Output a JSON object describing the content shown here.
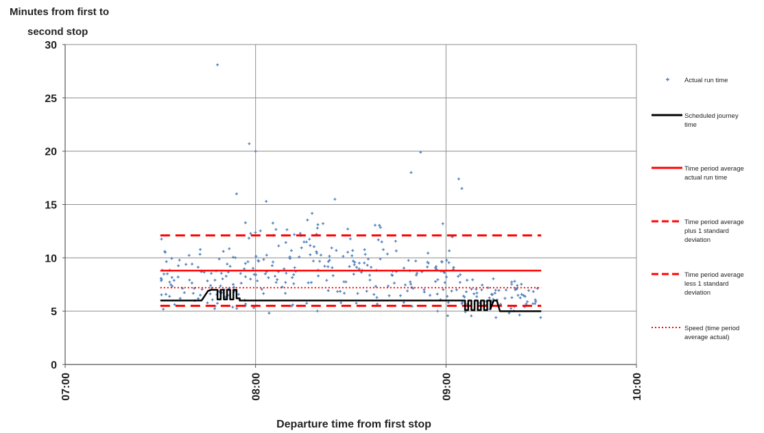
{
  "chart_data": {
    "type": "scatter",
    "ylabel_lines": [
      "Minutes from first to",
      "second stop"
    ],
    "xlabel": "Departure time from first stop",
    "xlim": [
      "07:00",
      "10:00"
    ],
    "ylim": [
      0,
      30
    ],
    "x_ticks": [
      "07:00",
      "08:00",
      "09:00",
      "10:00"
    ],
    "y_ticks": [
      0,
      5,
      10,
      15,
      20,
      25,
      30
    ],
    "grid": true,
    "legend_position": "right",
    "legend": [
      {
        "key": "actual",
        "lines": [
          "Actual run time"
        ],
        "color": "#4f81bd",
        "style": "marker"
      },
      {
        "key": "scheduled",
        "lines": [
          "Scheduled journey",
          "time"
        ],
        "color": "#000000",
        "style": "solid"
      },
      {
        "key": "avg",
        "lines": [
          "Time period average",
          "actual run time"
        ],
        "color": "#ff0000",
        "style": "solid"
      },
      {
        "key": "plus",
        "lines": [
          "Time period average",
          "plus 1 standard",
          "deviation"
        ],
        "color": "#ff0000",
        "style": "dashed"
      },
      {
        "key": "minus",
        "lines": [
          "Time period average",
          "less 1 standard",
          "deviation"
        ],
        "color": "#ff0000",
        "style": "dashed"
      },
      {
        "key": "speed",
        "lines": [
          "Speed (time period",
          "average actual)"
        ],
        "color": "#ff0000",
        "style": "dotted"
      }
    ],
    "reference_lines": {
      "x_range": [
        "07:30",
        "09:30"
      ],
      "avg": 8.8,
      "plus": 12.1,
      "minus": 5.5,
      "speed": 7.2
    },
    "scheduled_series": {
      "name": "Scheduled journey time",
      "x": [
        "07:30",
        "07:43",
        "07:45",
        "07:46",
        "07:47",
        "07:48",
        "07:48",
        "07:49",
        "07:49",
        "07:50",
        "07:50",
        "07:51",
        "07:51",
        "07:52",
        "07:52",
        "07:53",
        "07:53",
        "07:54",
        "07:54",
        "07:55",
        "07:55",
        "09:06",
        "09:06",
        "09:07",
        "09:07",
        "09:08",
        "09:08",
        "09:09",
        "09:09",
        "09:10",
        "09:10",
        "09:11",
        "09:11",
        "09:12",
        "09:12",
        "09:13",
        "09:13",
        "09:14",
        "09:14",
        "09:15",
        "09:16",
        "09:17",
        "09:30"
      ],
      "y": [
        6,
        6,
        6.9,
        7,
        7,
        7,
        6.1,
        6.1,
        7,
        7,
        6.1,
        6.1,
        7,
        7,
        6.1,
        6.1,
        7,
        7,
        6.2,
        6.2,
        6,
        6,
        5.1,
        5.1,
        6,
        6,
        5.1,
        5.1,
        6,
        6,
        5.1,
        5.1,
        6,
        6,
        5.1,
        5.1,
        6,
        6,
        5.2,
        6,
        6,
        5,
        5
      ]
    },
    "series": [
      {
        "name": "Actual run time",
        "x": [
          "07:48",
          "07:58",
          "08:00",
          "08:52",
          "09:04",
          "07:54",
          "08:25",
          "08:49",
          "09:05",
          "08:59"
        ],
        "y": [
          28.1,
          20.7,
          20,
          19.9,
          17.4,
          16,
          15.5,
          18,
          16.5,
          13.2
        ]
      }
    ],
    "scatter_seed": 7
  }
}
